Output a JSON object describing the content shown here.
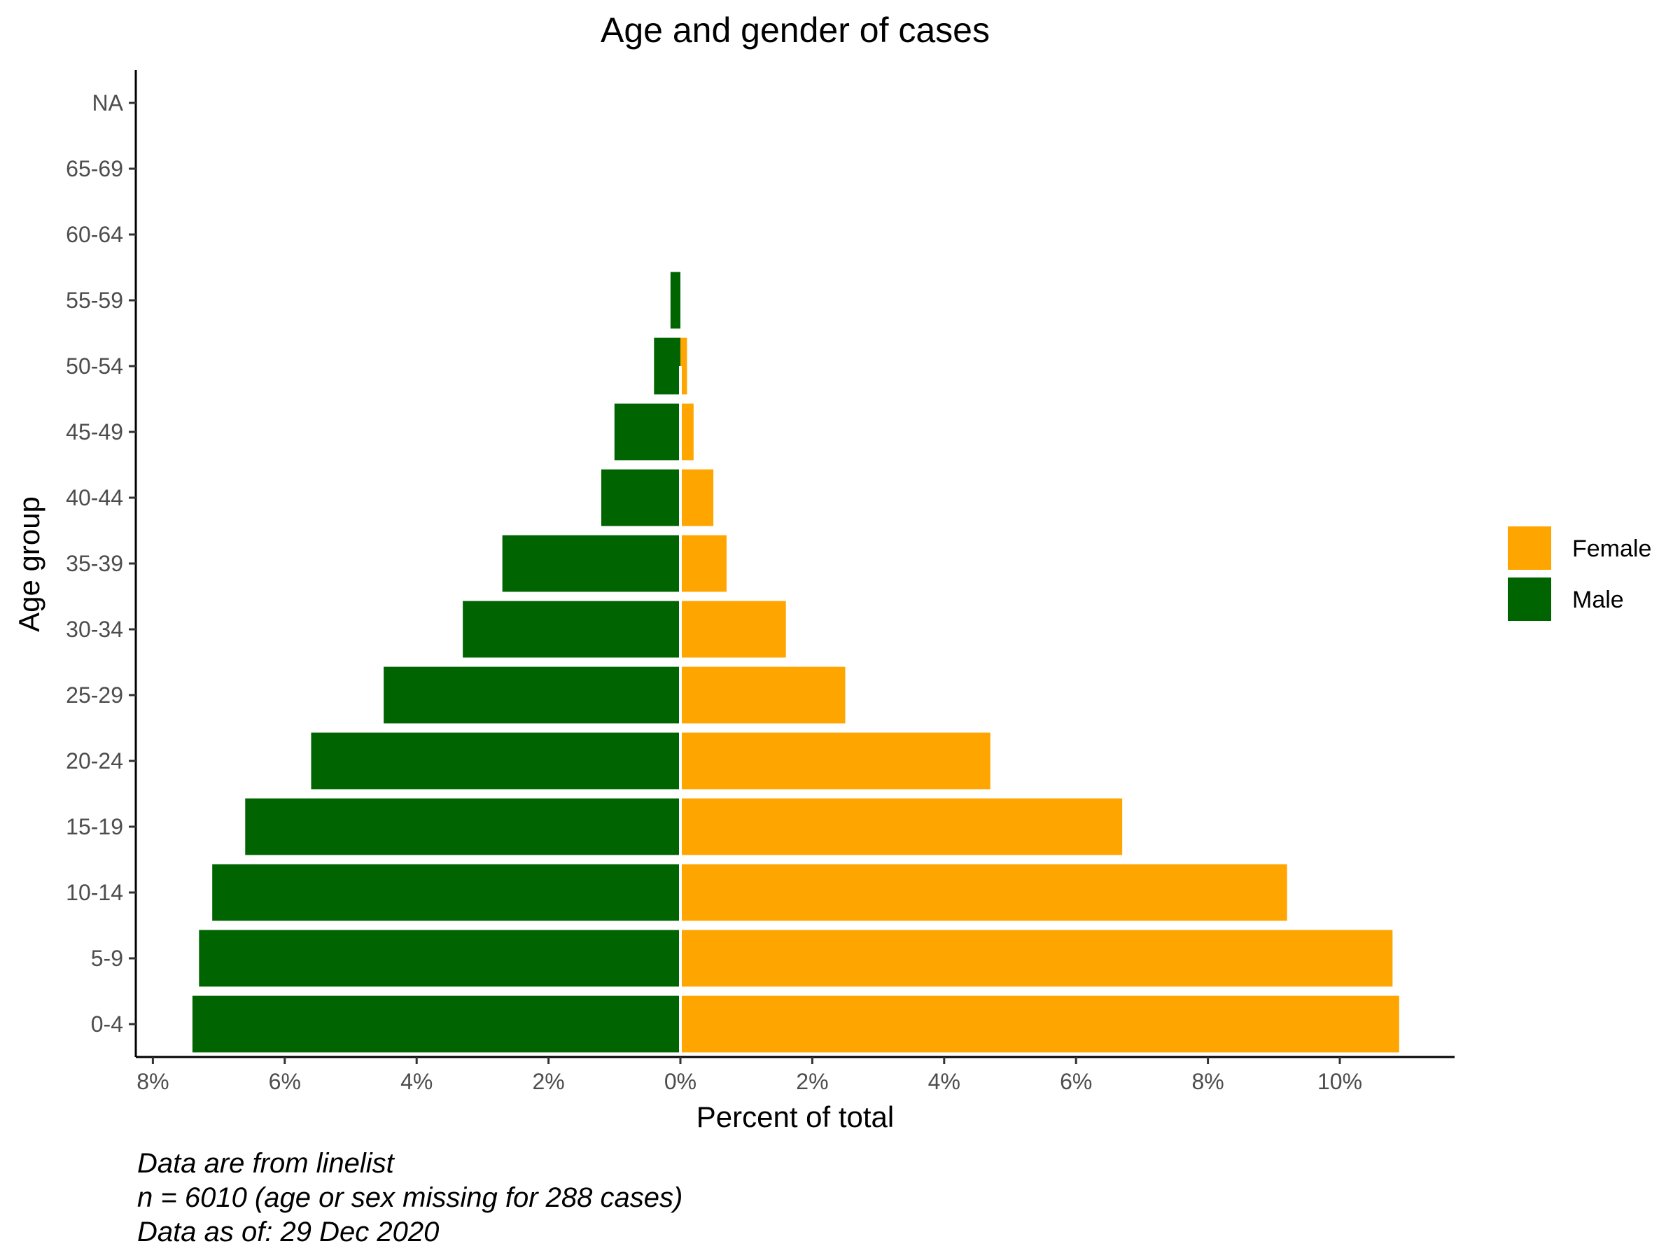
{
  "chart_data": {
    "type": "bar",
    "title": "Age and gender of cases",
    "xlabel": "Percent of total",
    "ylabel": "Age group",
    "categories": [
      "0-4",
      "5-9",
      "10-14",
      "15-19",
      "20-24",
      "25-29",
      "30-34",
      "35-39",
      "40-44",
      "45-49",
      "50-54",
      "55-59",
      "60-64",
      "65-69",
      "NA"
    ],
    "series": [
      {
        "name": "Female",
        "color": "#FFA500",
        "values": [
          10.9,
          10.8,
          9.2,
          6.7,
          4.7,
          2.5,
          1.6,
          0.7,
          0.5,
          0.2,
          0.1,
          0,
          0,
          0,
          0
        ]
      },
      {
        "name": "Male",
        "color": "#006400",
        "values": [
          7.4,
          7.3,
          7.1,
          6.6,
          5.6,
          4.5,
          3.3,
          2.7,
          1.2,
          1.0,
          0.4,
          0.15,
          0,
          0,
          0
        ]
      }
    ],
    "xlim": [
      -8.3,
      11.8
    ],
    "xticks": [
      -8,
      -6,
      -4,
      -2,
      0,
      2,
      4,
      6,
      8,
      10
    ],
    "xtick_labels": [
      "8%",
      "6%",
      "4%",
      "2%",
      "0%",
      "2%",
      "4%",
      "6%",
      "8%",
      "10%"
    ],
    "legend_position": "right",
    "grid": false
  },
  "caption": [
    "Data are from linelist",
    "n = 6010 (age or sex missing for 288 cases)",
    "Data as of: 29 Dec 2020"
  ]
}
